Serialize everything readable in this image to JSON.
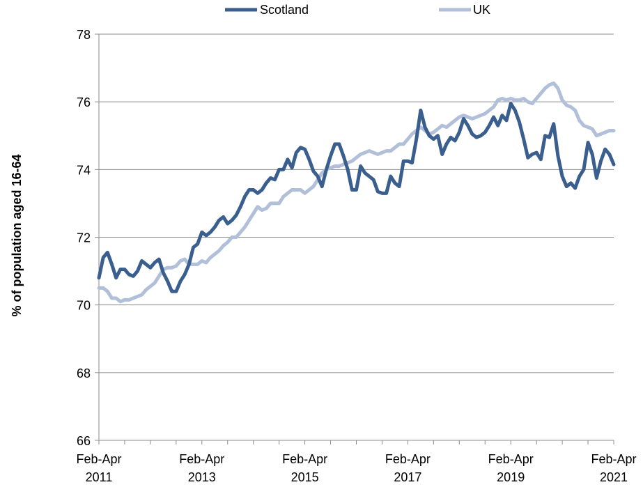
{
  "chart_data": {
    "type": "line",
    "title": "",
    "xlabel": "",
    "ylabel": "% of population aged 16-64",
    "ylim": [
      66,
      78
    ],
    "yticks": [
      "66",
      "68",
      "70",
      "72",
      "74",
      "76",
      "78"
    ],
    "xticks": [
      {
        "line1": "Feb-Apr",
        "line2": "2011"
      },
      {
        "line1": "Feb-Apr",
        "line2": "2013"
      },
      {
        "line1": "Feb-Apr",
        "line2": "2015"
      },
      {
        "line1": "Feb-Apr",
        "line2": "2017"
      },
      {
        "line1": "Feb-Apr",
        "line2": "2019"
      },
      {
        "line1": "Feb-Apr",
        "line2": "2021"
      }
    ],
    "x_start": "Feb-Apr 2011",
    "x_end": "Feb-Apr 2021",
    "grid": "horizontal",
    "legend": "top",
    "series": [
      {
        "name": "Scotland",
        "color": "#3a5f8f",
        "values": [
          70.8,
          71.4,
          71.55,
          71.2,
          70.8,
          71.05,
          71.05,
          70.9,
          70.85,
          71.0,
          71.3,
          71.2,
          71.1,
          71.25,
          71.35,
          70.95,
          70.7,
          70.4,
          70.4,
          70.7,
          70.9,
          71.2,
          71.7,
          71.8,
          72.15,
          72.05,
          72.15,
          72.3,
          72.5,
          72.6,
          72.4,
          72.5,
          72.65,
          72.9,
          73.2,
          73.4,
          73.4,
          73.3,
          73.4,
          73.6,
          73.75,
          73.7,
          74.0,
          74.0,
          74.3,
          74.05,
          74.5,
          74.65,
          74.6,
          74.3,
          73.95,
          73.8,
          73.5,
          74.0,
          74.4,
          74.75,
          74.75,
          74.4,
          74.0,
          73.4,
          73.4,
          74.1,
          73.9,
          73.8,
          73.7,
          73.35,
          73.3,
          73.3,
          73.8,
          73.6,
          73.5,
          74.25,
          74.25,
          74.2,
          74.9,
          75.75,
          75.25,
          75.0,
          74.9,
          75.0,
          74.45,
          74.75,
          74.95,
          74.85,
          75.1,
          75.5,
          75.3,
          75.05,
          74.95,
          75.0,
          75.1,
          75.3,
          75.55,
          75.3,
          75.6,
          75.45,
          75.95,
          75.75,
          75.4,
          74.9,
          74.35,
          74.45,
          74.5,
          74.3,
          75.0,
          74.95,
          75.35,
          74.4,
          73.8,
          73.5,
          73.6,
          73.45,
          73.8,
          74.0,
          74.8,
          74.45,
          73.75,
          74.25,
          74.6,
          74.45,
          74.15
        ]
      },
      {
        "name": "UK",
        "color": "#b1bfd9",
        "values": [
          70.5,
          70.5,
          70.4,
          70.2,
          70.2,
          70.1,
          70.15,
          70.15,
          70.2,
          70.25,
          70.3,
          70.45,
          70.55,
          70.65,
          70.85,
          71.05,
          71.1,
          71.1,
          71.15,
          71.3,
          71.35,
          71.2,
          71.2,
          71.2,
          71.3,
          71.25,
          71.4,
          71.5,
          71.6,
          71.75,
          71.85,
          72.0,
          72.0,
          72.15,
          72.3,
          72.5,
          72.7,
          72.9,
          72.8,
          72.85,
          73.0,
          73.0,
          73.0,
          73.2,
          73.3,
          73.4,
          73.4,
          73.4,
          73.3,
          73.4,
          73.5,
          73.7,
          73.9,
          74.0,
          74.05,
          74.1,
          74.1,
          74.15,
          74.2,
          74.25,
          74.35,
          74.45,
          74.5,
          74.55,
          74.5,
          74.45,
          74.5,
          74.55,
          74.55,
          74.65,
          74.75,
          74.75,
          74.9,
          75.05,
          75.15,
          75.25,
          75.15,
          75.05,
          75.1,
          75.2,
          75.3,
          75.25,
          75.35,
          75.45,
          75.55,
          75.6,
          75.55,
          75.5,
          75.55,
          75.6,
          75.65,
          75.75,
          75.85,
          76.05,
          76.1,
          76.05,
          76.1,
          76.05,
          76.05,
          76.1,
          76.0,
          75.95,
          76.1,
          76.25,
          76.4,
          76.5,
          76.55,
          76.4,
          76.05,
          75.9,
          75.85,
          75.75,
          75.45,
          75.3,
          75.25,
          75.2,
          75.0,
          75.05,
          75.1,
          75.15,
          75.15
        ]
      }
    ]
  }
}
